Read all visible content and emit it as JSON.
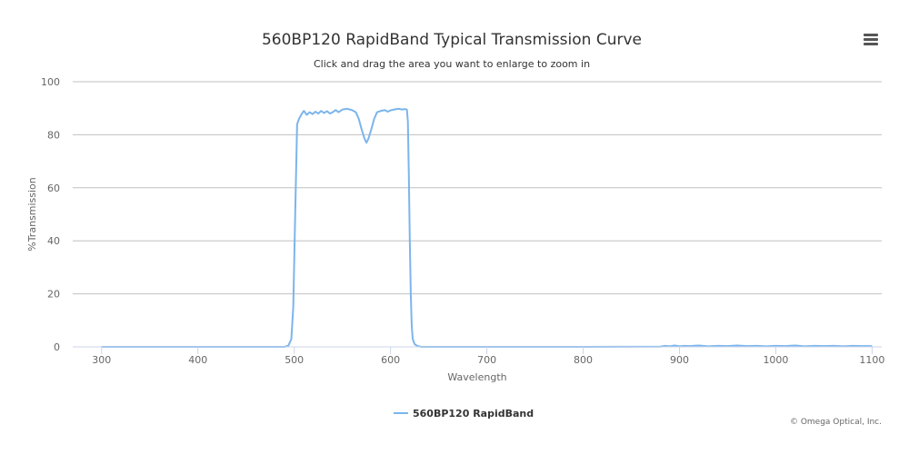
{
  "menu_icon": "hamburger-menu-icon",
  "credit": "© Omega Optical, Inc.",
  "colors": {
    "series": "#7cb5ec",
    "grid": "#c0c0c0",
    "axis": "#ccd6eb",
    "text": "#333333",
    "label": "#666666"
  },
  "chart_data": {
    "type": "line",
    "title": "560BP120 RapidBand Typical Transmission Curve",
    "subtitle": "Click and drag the area you want to enlarge to zoom in",
    "xlabel": "Wavelength",
    "ylabel": "%Transmission",
    "xlim": [
      270,
      1110
    ],
    "ylim": [
      0,
      100
    ],
    "xticks": [
      300,
      400,
      500,
      600,
      700,
      800,
      900,
      1000,
      1100
    ],
    "yticks": [
      0,
      20,
      40,
      60,
      80,
      100
    ],
    "grid": true,
    "legend_position": "bottom-center",
    "series": [
      {
        "name": "560BP120 RapidBand",
        "color": "#7cb5ec",
        "points": [
          [
            300,
            0
          ],
          [
            490,
            0
          ],
          [
            494,
            0.5
          ],
          [
            497,
            3
          ],
          [
            499,
            15
          ],
          [
            501,
            50
          ],
          [
            503,
            84
          ],
          [
            505,
            86
          ],
          [
            508,
            88
          ],
          [
            510,
            89
          ],
          [
            513,
            87.5
          ],
          [
            516,
            88.5
          ],
          [
            519,
            87.8
          ],
          [
            522,
            88.7
          ],
          [
            525,
            88
          ],
          [
            528,
            89
          ],
          [
            531,
            88.2
          ],
          [
            534,
            88.9
          ],
          [
            537,
            88
          ],
          [
            540,
            88.5
          ],
          [
            543,
            89.3
          ],
          [
            546,
            88.5
          ],
          [
            550,
            89.5
          ],
          [
            555,
            89.8
          ],
          [
            560,
            89.3
          ],
          [
            564,
            88.5
          ],
          [
            567,
            86
          ],
          [
            570,
            82
          ],
          [
            573,
            78.5
          ],
          [
            575,
            77
          ],
          [
            577,
            78.5
          ],
          [
            580,
            82
          ],
          [
            583,
            86
          ],
          [
            586,
            88.5
          ],
          [
            590,
            89
          ],
          [
            594,
            89.3
          ],
          [
            597,
            88.7
          ],
          [
            600,
            89.2
          ],
          [
            604,
            89.5
          ],
          [
            608,
            89.8
          ],
          [
            612,
            89.5
          ],
          [
            615,
            89.7
          ],
          [
            617,
            89.5
          ],
          [
            618,
            85
          ],
          [
            619,
            65
          ],
          [
            620,
            40
          ],
          [
            621,
            20
          ],
          [
            622,
            8
          ],
          [
            623,
            3
          ],
          [
            625,
            1
          ],
          [
            628,
            0.3
          ],
          [
            632,
            0
          ],
          [
            700,
            0
          ],
          [
            800,
            0
          ],
          [
            880,
            0.1
          ],
          [
            885,
            0.4
          ],
          [
            890,
            0.2
          ],
          [
            895,
            0.5
          ],
          [
            900,
            0.2
          ],
          [
            905,
            0.4
          ],
          [
            910,
            0.3
          ],
          [
            920,
            0.5
          ],
          [
            930,
            0.2
          ],
          [
            940,
            0.4
          ],
          [
            950,
            0.3
          ],
          [
            960,
            0.5
          ],
          [
            970,
            0.3
          ],
          [
            980,
            0.4
          ],
          [
            990,
            0.2
          ],
          [
            1000,
            0.4
          ],
          [
            1010,
            0.3
          ],
          [
            1020,
            0.5
          ],
          [
            1030,
            0.2
          ],
          [
            1040,
            0.4
          ],
          [
            1050,
            0.3
          ],
          [
            1060,
            0.4
          ],
          [
            1070,
            0.2
          ],
          [
            1080,
            0.4
          ],
          [
            1090,
            0.3
          ],
          [
            1100,
            0.3
          ]
        ]
      }
    ]
  }
}
